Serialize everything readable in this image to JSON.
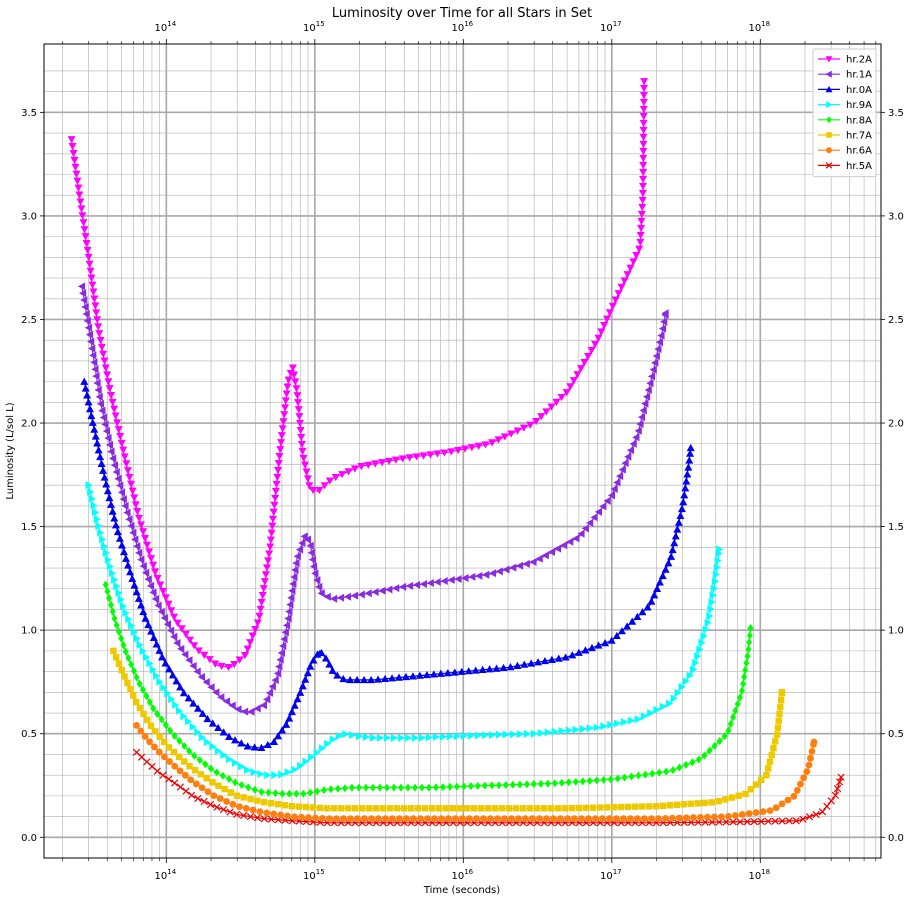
{
  "chart_data": {
    "type": "line",
    "title": "Luminosity over Time for all Stars in Set",
    "xlabel": "Time (seconds)",
    "ylabel": "Luminosity (L/sol L)",
    "xscale": "log",
    "xlim": [
      15000000000000.0,
      6.5e+18
    ],
    "ylim": [
      -0.1,
      3.83
    ],
    "x_tick_labels": [
      {
        "value": 100000000000000.0,
        "mant": "10",
        "exp": "14"
      },
      {
        "value": 1000000000000000.0,
        "mant": "10",
        "exp": "15"
      },
      {
        "value": 1e+16,
        "mant": "10",
        "exp": "16"
      },
      {
        "value": 1e+17,
        "mant": "10",
        "exp": "17"
      },
      {
        "value": 1e+18,
        "mant": "10",
        "exp": "18"
      }
    ],
    "y_tick_labels": [
      "0.0",
      "0.5",
      "1.0",
      "1.5",
      "2.0",
      "2.5",
      "3.0",
      "3.5"
    ],
    "y_tick_values": [
      0.0,
      0.5,
      1.0,
      1.5,
      2.0,
      2.5,
      3.0,
      3.5
    ],
    "grid": true,
    "legend_position": "top-right",
    "series": [
      {
        "name": "hr.2A",
        "color": "#ff00ff",
        "marker": "triangle-down",
        "points": [
          [
            23000000000000.0,
            3.37
          ],
          [
            26000000000000.0,
            3.1
          ],
          [
            30000000000000.0,
            2.8
          ],
          [
            35000000000000.0,
            2.45
          ],
          [
            42000000000000.0,
            2.15
          ],
          [
            52000000000000.0,
            1.85
          ],
          [
            65000000000000.0,
            1.55
          ],
          [
            85000000000000.0,
            1.27
          ],
          [
            115000000000000.0,
            1.05
          ],
          [
            160000000000000.0,
            0.91
          ],
          [
            220000000000000.0,
            0.83
          ],
          [
            270000000000000.0,
            0.82
          ],
          [
            340000000000000.0,
            0.88
          ],
          [
            420000000000000.0,
            1.05
          ],
          [
            500000000000000.0,
            1.4
          ],
          [
            580000000000000.0,
            1.85
          ],
          [
            660000000000000.0,
            2.2
          ],
          [
            710000000000000.0,
            2.27
          ],
          [
            760000000000000.0,
            2.15
          ],
          [
            830000000000000.0,
            1.85
          ],
          [
            930000000000000.0,
            1.68
          ],
          [
            1050000000000000.0,
            1.67
          ],
          [
            1300000000000000.0,
            1.73
          ],
          [
            2000000000000000.0,
            1.79
          ],
          [
            4000000000000000.0,
            1.83
          ],
          [
            8000000000000000.0,
            1.86
          ],
          [
            1.5e+16,
            1.9
          ],
          [
            3e+16,
            2.0
          ],
          [
            5e+16,
            2.15
          ],
          [
            8e+16,
            2.4
          ],
          [
            1.1e+17,
            2.62
          ],
          [
            1.4e+17,
            2.78
          ],
          [
            1.55e+17,
            2.85
          ],
          [
            1.62e+17,
            3.1
          ],
          [
            1.65e+17,
            3.65
          ]
        ]
      },
      {
        "name": "hr.1A",
        "color": "#8a2be2",
        "marker": "triangle-left",
        "points": [
          [
            27000000000000.0,
            2.66
          ],
          [
            31000000000000.0,
            2.4
          ],
          [
            36000000000000.0,
            2.1
          ],
          [
            43000000000000.0,
            1.85
          ],
          [
            53000000000000.0,
            1.6
          ],
          [
            67000000000000.0,
            1.35
          ],
          [
            87000000000000.0,
            1.13
          ],
          [
            120000000000000.0,
            0.93
          ],
          [
            170000000000000.0,
            0.78
          ],
          [
            230000000000000.0,
            0.68
          ],
          [
            300000000000000.0,
            0.62
          ],
          [
            360000000000000.0,
            0.6
          ],
          [
            460000000000000.0,
            0.64
          ],
          [
            560000000000000.0,
            0.78
          ],
          [
            660000000000000.0,
            1.05
          ],
          [
            760000000000000.0,
            1.35
          ],
          [
            860000000000000.0,
            1.46
          ],
          [
            930000000000000.0,
            1.42
          ],
          [
            1000000000000000.0,
            1.28
          ],
          [
            1100000000000000.0,
            1.18
          ],
          [
            1300000000000000.0,
            1.15
          ],
          [
            2000000000000000.0,
            1.17
          ],
          [
            4000000000000000.0,
            1.21
          ],
          [
            8000000000000000.0,
            1.24
          ],
          [
            1.5e+16,
            1.27
          ],
          [
            3e+16,
            1.33
          ],
          [
            6e+16,
            1.45
          ],
          [
            1e+17,
            1.65
          ],
          [
            1.5e+17,
            1.95
          ],
          [
            1.9e+17,
            2.25
          ],
          [
            2.2e+17,
            2.45
          ],
          [
            2.3e+17,
            2.53
          ]
        ]
      },
      {
        "name": "hr.0A",
        "color": "#0000ee",
        "marker": "triangle-up",
        "points": [
          [
            28000000000000.0,
            2.2
          ],
          [
            32000000000000.0,
            2.0
          ],
          [
            38000000000000.0,
            1.75
          ],
          [
            46000000000000.0,
            1.5
          ],
          [
            57000000000000.0,
            1.28
          ],
          [
            72000000000000.0,
            1.06
          ],
          [
            95000000000000.0,
            0.86
          ],
          [
            130000000000000.0,
            0.7
          ],
          [
            190000000000000.0,
            0.57
          ],
          [
            270000000000000.0,
            0.48
          ],
          [
            350000000000000.0,
            0.44
          ],
          [
            430000000000000.0,
            0.43
          ],
          [
            530000000000000.0,
            0.46
          ],
          [
            650000000000000.0,
            0.55
          ],
          [
            800000000000000.0,
            0.7
          ],
          [
            950000000000000.0,
            0.84
          ],
          [
            1080000000000000.0,
            0.9
          ],
          [
            1200000000000000.0,
            0.86
          ],
          [
            1350000000000000.0,
            0.79
          ],
          [
            1600000000000000.0,
            0.76
          ],
          [
            2500000000000000.0,
            0.76
          ],
          [
            5000000000000000.0,
            0.78
          ],
          [
            1e+16,
            0.8
          ],
          [
            2e+16,
            0.82
          ],
          [
            5e+16,
            0.87
          ],
          [
            1e+17,
            0.95
          ],
          [
            1.8e+17,
            1.12
          ],
          [
            2.5e+17,
            1.35
          ],
          [
            3e+17,
            1.6
          ],
          [
            3.3e+17,
            1.8
          ],
          [
            3.4e+17,
            1.88
          ]
        ]
      },
      {
        "name": "hr.9A",
        "color": "#00ffff",
        "marker": "triangle-right",
        "points": [
          [
            30000000000000.0,
            1.7
          ],
          [
            35000000000000.0,
            1.5
          ],
          [
            42000000000000.0,
            1.3
          ],
          [
            52000000000000.0,
            1.1
          ],
          [
            67000000000000.0,
            0.92
          ],
          [
            90000000000000.0,
            0.75
          ],
          [
            125000000000000.0,
            0.6
          ],
          [
            180000000000000.0,
            0.47
          ],
          [
            260000000000000.0,
            0.38
          ],
          [
            360000000000000.0,
            0.32
          ],
          [
            460000000000000.0,
            0.3
          ],
          [
            580000000000000.0,
            0.3
          ],
          [
            750000000000000.0,
            0.33
          ],
          [
            1000000000000000.0,
            0.4
          ],
          [
            1300000000000000.0,
            0.47
          ],
          [
            1550000000000000.0,
            0.5
          ],
          [
            1900000000000000.0,
            0.49
          ],
          [
            2500000000000000.0,
            0.48
          ],
          [
            5000000000000000.0,
            0.48
          ],
          [
            1e+16,
            0.49
          ],
          [
            3e+16,
            0.5
          ],
          [
            8e+16,
            0.53
          ],
          [
            1.5e+17,
            0.57
          ],
          [
            2.5e+17,
            0.65
          ],
          [
            3.5e+17,
            0.8
          ],
          [
            4.5e+17,
            1.05
          ],
          [
            5e+17,
            1.25
          ],
          [
            5.3e+17,
            1.39
          ]
        ]
      },
      {
        "name": "hr.8A",
        "color": "#00ff00",
        "marker": "diamond",
        "points": [
          [
            39000000000000.0,
            1.22
          ],
          [
            45000000000000.0,
            1.05
          ],
          [
            53000000000000.0,
            0.9
          ],
          [
            65000000000000.0,
            0.75
          ],
          [
            82000000000000.0,
            0.62
          ],
          [
            110000000000000.0,
            0.5
          ],
          [
            150000000000000.0,
            0.4
          ],
          [
            210000000000000.0,
            0.32
          ],
          [
            300000000000000.0,
            0.26
          ],
          [
            430000000000000.0,
            0.22
          ],
          [
            600000000000000.0,
            0.21
          ],
          [
            850000000000000.0,
            0.21
          ],
          [
            1200000000000000.0,
            0.23
          ],
          [
            1800000000000000.0,
            0.24
          ],
          [
            3000000000000000.0,
            0.24
          ],
          [
            6000000000000000.0,
            0.24
          ],
          [
            1.5e+16,
            0.25
          ],
          [
            4e+16,
            0.26
          ],
          [
            1e+17,
            0.28
          ],
          [
            2.5e+17,
            0.32
          ],
          [
            4e+17,
            0.38
          ],
          [
            6e+17,
            0.5
          ],
          [
            7.5e+17,
            0.7
          ],
          [
            8.3e+17,
            0.9
          ],
          [
            8.6e+17,
            1.01
          ]
        ]
      },
      {
        "name": "hr.7A",
        "color": "#eec900",
        "marker": "square",
        "points": [
          [
            44000000000000.0,
            0.9
          ],
          [
            52000000000000.0,
            0.78
          ],
          [
            63000000000000.0,
            0.65
          ],
          [
            80000000000000.0,
            0.53
          ],
          [
            105000000000000.0,
            0.43
          ],
          [
            145000000000000.0,
            0.34
          ],
          [
            210000000000000.0,
            0.26
          ],
          [
            300000000000000.0,
            0.2
          ],
          [
            450000000000000.0,
            0.17
          ],
          [
            700000000000000.0,
            0.15
          ],
          [
            1200000000000000.0,
            0.14
          ],
          [
            3000000000000000.0,
            0.14
          ],
          [
            1e+16,
            0.14
          ],
          [
            5e+16,
            0.14
          ],
          [
            2e+17,
            0.15
          ],
          [
            5e+17,
            0.17
          ],
          [
            8e+17,
            0.21
          ],
          [
            1.1e+18,
            0.3
          ],
          [
            1.3e+18,
            0.5
          ],
          [
            1.4e+18,
            0.7
          ]
        ]
      },
      {
        "name": "hr.6A",
        "color": "#ff7f0e",
        "marker": "circle",
        "points": [
          [
            63000000000000.0,
            0.54
          ],
          [
            75000000000000.0,
            0.47
          ],
          [
            90000000000000.0,
            0.41
          ],
          [
            115000000000000.0,
            0.34
          ],
          [
            150000000000000.0,
            0.27
          ],
          [
            210000000000000.0,
            0.2
          ],
          [
            300000000000000.0,
            0.15
          ],
          [
            450000000000000.0,
            0.12
          ],
          [
            700000000000000.0,
            0.1
          ],
          [
            1200000000000000.0,
            0.09
          ],
          [
            3000000000000000.0,
            0.09
          ],
          [
            1e+16,
            0.09
          ],
          [
            5e+16,
            0.09
          ],
          [
            2e+17,
            0.09
          ],
          [
            6e+17,
            0.1
          ],
          [
            1.2e+18,
            0.13
          ],
          [
            1.7e+18,
            0.2
          ],
          [
            2.1e+18,
            0.33
          ],
          [
            2.3e+18,
            0.46
          ]
        ]
      },
      {
        "name": "hr.5A",
        "color": "#ee0000",
        "marker": "x",
        "points": [
          [
            63000000000000.0,
            0.41
          ],
          [
            75000000000000.0,
            0.36
          ],
          [
            90000000000000.0,
            0.31
          ],
          [
            115000000000000.0,
            0.26
          ],
          [
            150000000000000.0,
            0.2
          ],
          [
            210000000000000.0,
            0.15
          ],
          [
            300000000000000.0,
            0.11
          ],
          [
            450000000000000.0,
            0.09
          ],
          [
            700000000000000.0,
            0.08
          ],
          [
            1200000000000000.0,
            0.07
          ],
          [
            3000000000000000.0,
            0.07
          ],
          [
            1e+16,
            0.07
          ],
          [
            5e+16,
            0.07
          ],
          [
            2e+17,
            0.07
          ],
          [
            8e+17,
            0.075
          ],
          [
            1.8e+18,
            0.08
          ],
          [
            2.6e+18,
            0.12
          ],
          [
            3.2e+18,
            0.2
          ],
          [
            3.5e+18,
            0.29
          ]
        ]
      }
    ]
  }
}
